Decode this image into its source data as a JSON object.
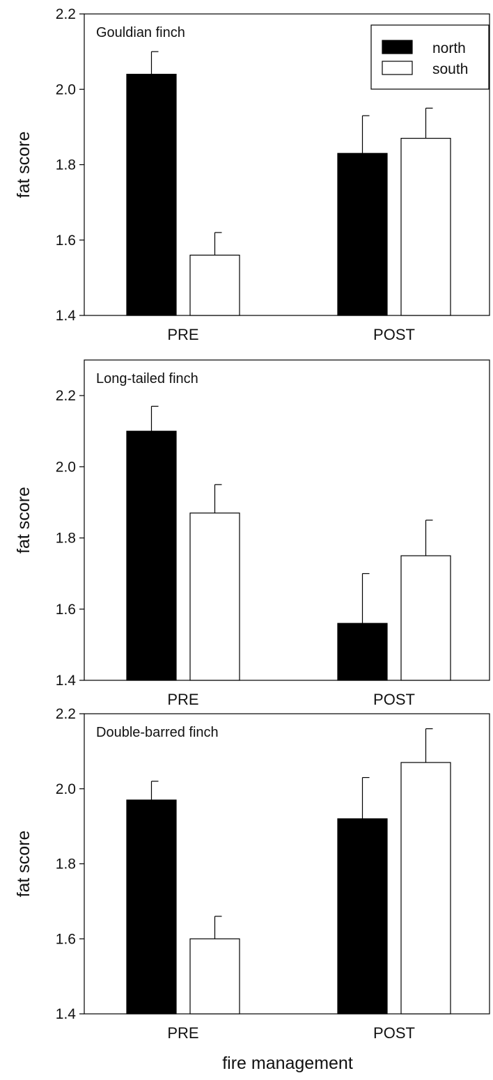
{
  "figure": {
    "xlabel": "fire management"
  },
  "legend": {
    "entries": [
      {
        "name": "north",
        "color": "#000000"
      },
      {
        "name": "south",
        "color": "#ffffff"
      }
    ]
  },
  "chart_data": [
    {
      "type": "bar",
      "title": "Gouldian finch",
      "ylabel": "fat score",
      "ylim": [
        1.4,
        2.2
      ],
      "yticks": [
        "1.4",
        "1.6",
        "1.8",
        "2.0",
        "2.2"
      ],
      "categories": [
        "PRE",
        "POST"
      ],
      "legend_position": "top-right",
      "series": [
        {
          "name": "north",
          "values": [
            2.04,
            1.83
          ],
          "errors": [
            0.06,
            0.1
          ]
        },
        {
          "name": "south",
          "values": [
            1.56,
            1.87
          ],
          "errors": [
            0.06,
            0.08
          ]
        }
      ]
    },
    {
      "type": "bar",
      "title": "Long-tailed finch",
      "ylabel": "fat score",
      "ylim": [
        1.4,
        2.3
      ],
      "yticks": [
        "1.4",
        "1.6",
        "1.8",
        "2.0",
        "2.2"
      ],
      "categories": [
        "PRE",
        "POST"
      ],
      "series": [
        {
          "name": "north",
          "values": [
            2.1,
            1.56
          ],
          "errors": [
            0.07,
            0.14
          ]
        },
        {
          "name": "south",
          "values": [
            1.87,
            1.75
          ],
          "errors": [
            0.08,
            0.1
          ]
        }
      ]
    },
    {
      "type": "bar",
      "title": "Double-barred finch",
      "ylabel": "fat score",
      "ylim": [
        1.4,
        2.2
      ],
      "yticks": [
        "1.4",
        "1.6",
        "1.8",
        "2.0",
        "2.2"
      ],
      "categories": [
        "PRE",
        "POST"
      ],
      "series": [
        {
          "name": "north",
          "values": [
            1.97,
            1.92
          ],
          "errors": [
            0.05,
            0.11
          ]
        },
        {
          "name": "south",
          "values": [
            1.6,
            2.07
          ],
          "errors": [
            0.06,
            0.09
          ]
        }
      ]
    }
  ]
}
